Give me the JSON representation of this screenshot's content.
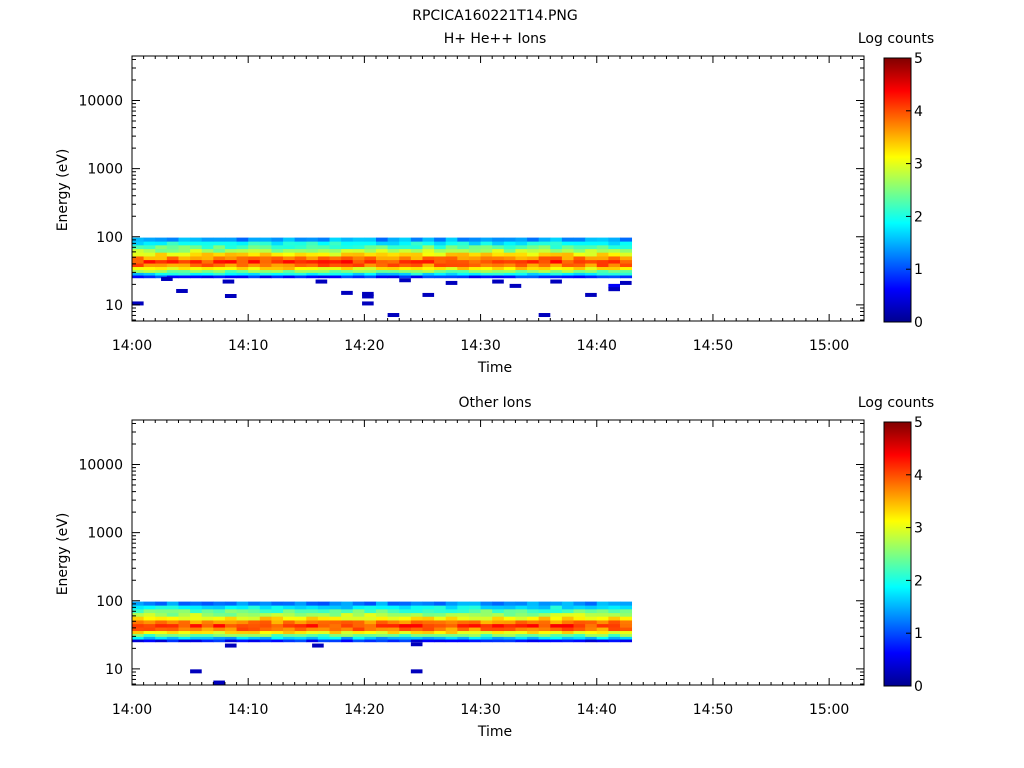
{
  "figure_title": "RPCICA160221T14.PNG",
  "chart_data": [
    {
      "type": "heatmap",
      "title": "H+ He++ Ions",
      "xlabel": "Time",
      "ylabel": "Energy (eV)",
      "x_ticks": [
        "14:00",
        "14:10",
        "14:20",
        "14:30",
        "14:40",
        "14:50",
        "15:00"
      ],
      "x_range_minutes": [
        0,
        63
      ],
      "y_ticks": [
        "10",
        "100",
        "1000",
        "10000"
      ],
      "y_range": [
        5.8,
        45000
      ],
      "y_scale": "log",
      "data_time_range_minutes": [
        0,
        43
      ],
      "colorbar": {
        "label": "Log counts",
        "range": [
          0,
          5
        ],
        "ticks": [
          "0",
          "1",
          "2",
          "3",
          "4",
          "5"
        ]
      },
      "band_profile": [
        {
          "energy": 90,
          "log_counts": 1.4
        },
        {
          "energy": 80,
          "log_counts": 1.9
        },
        {
          "energy": 70,
          "log_counts": 2.3
        },
        {
          "energy": 62,
          "log_counts": 2.7
        },
        {
          "energy": 55,
          "log_counts": 3.2
        },
        {
          "energy": 48,
          "log_counts": 3.7
        },
        {
          "energy": 43,
          "log_counts": 4.1
        },
        {
          "energy": 38,
          "log_counts": 3.8
        },
        {
          "energy": 34,
          "log_counts": 3.2
        },
        {
          "energy": 31,
          "log_counts": 2.5
        },
        {
          "energy": 28,
          "log_counts": 1.8
        },
        {
          "energy": 26,
          "log_counts": 0.8
        }
      ],
      "sparse_points": [
        {
          "t": 0.5,
          "energy": 10.5,
          "log_counts": 0.3
        },
        {
          "t": 3.0,
          "energy": 24,
          "log_counts": 0.3
        },
        {
          "t": 4.3,
          "energy": 16,
          "log_counts": 0.3
        },
        {
          "t": 8.5,
          "energy": 13.5,
          "log_counts": 0.3
        },
        {
          "t": 8.3,
          "energy": 22,
          "log_counts": 0.3
        },
        {
          "t": 16.3,
          "energy": 22,
          "log_counts": 0.3
        },
        {
          "t": 18.5,
          "energy": 15,
          "log_counts": 0.3
        },
        {
          "t": 20.3,
          "energy": 14.5,
          "log_counts": 0.3
        },
        {
          "t": 20.3,
          "energy": 13.3,
          "log_counts": 0.3
        },
        {
          "t": 20.3,
          "energy": 10.5,
          "log_counts": 0.3
        },
        {
          "t": 22.5,
          "energy": 7.1,
          "log_counts": 0.3
        },
        {
          "t": 23.5,
          "energy": 23,
          "log_counts": 0.3
        },
        {
          "t": 25.5,
          "energy": 14,
          "log_counts": 0.3
        },
        {
          "t": 27.5,
          "energy": 21,
          "log_counts": 0.3
        },
        {
          "t": 31.5,
          "energy": 22,
          "log_counts": 0.3
        },
        {
          "t": 33.0,
          "energy": 19,
          "log_counts": 0.3
        },
        {
          "t": 35.5,
          "energy": 7.1,
          "log_counts": 0.3
        },
        {
          "t": 36.5,
          "energy": 22,
          "log_counts": 0.3
        },
        {
          "t": 39.5,
          "energy": 14,
          "log_counts": 0.3
        },
        {
          "t": 41.5,
          "energy": 19,
          "log_counts": 0.6
        },
        {
          "t": 41.5,
          "energy": 17,
          "log_counts": 0.3
        },
        {
          "t": 42.5,
          "energy": 21,
          "log_counts": 0.3
        }
      ]
    },
    {
      "type": "heatmap",
      "title": "Other Ions",
      "xlabel": "Time",
      "ylabel": "Energy (eV)",
      "x_ticks": [
        "14:00",
        "14:10",
        "14:20",
        "14:30",
        "14:40",
        "14:50",
        "15:00"
      ],
      "x_range_minutes": [
        0,
        63
      ],
      "y_ticks": [
        "10",
        "100",
        "1000",
        "10000"
      ],
      "y_range": [
        5.8,
        45000
      ],
      "y_scale": "log",
      "data_time_range_minutes": [
        0,
        43
      ],
      "colorbar": {
        "label": "Log counts",
        "range": [
          0,
          5
        ],
        "ticks": [
          "0",
          "1",
          "2",
          "3",
          "4",
          "5"
        ]
      },
      "band_profile": [
        {
          "energy": 90,
          "log_counts": 1.3
        },
        {
          "energy": 80,
          "log_counts": 1.8
        },
        {
          "energy": 70,
          "log_counts": 2.3
        },
        {
          "energy": 62,
          "log_counts": 2.7
        },
        {
          "energy": 55,
          "log_counts": 3.2
        },
        {
          "energy": 48,
          "log_counts": 3.7
        },
        {
          "energy": 43,
          "log_counts": 4.1
        },
        {
          "energy": 38,
          "log_counts": 3.8
        },
        {
          "energy": 34,
          "log_counts": 3.2
        },
        {
          "energy": 31,
          "log_counts": 2.4
        },
        {
          "energy": 28,
          "log_counts": 1.6
        },
        {
          "energy": 26,
          "log_counts": 0.7
        }
      ],
      "sparse_points": [
        {
          "t": 8.5,
          "energy": 22,
          "log_counts": 0.3
        },
        {
          "t": 5.5,
          "energy": 9.2,
          "log_counts": 0.3
        },
        {
          "t": 7.5,
          "energy": 6.3,
          "log_counts": 0.3
        },
        {
          "t": 16.0,
          "energy": 22,
          "log_counts": 0.3
        },
        {
          "t": 24.5,
          "energy": 9.2,
          "log_counts": 0.3
        },
        {
          "t": 24.5,
          "energy": 23,
          "log_counts": 0.3
        }
      ]
    }
  ]
}
